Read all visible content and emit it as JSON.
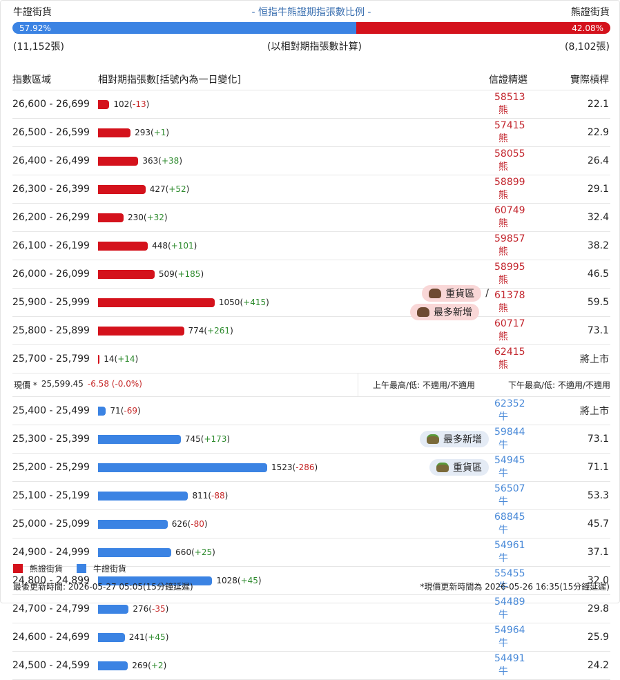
{
  "header": {
    "left": "牛證街貨",
    "title": "- 恒指牛熊證期指張數比例 -",
    "right": "熊證街貨"
  },
  "ratio": {
    "bull": {
      "value": 57.92,
      "label": "57.92%"
    },
    "bear": {
      "value": 42.08,
      "label": "42.08%"
    },
    "bull_count": "(11,152張)",
    "note": "(以相對期指張數計算)",
    "bear_count": "(8,102張)"
  },
  "columns": [
    "指數區域",
    "相對期指張數[括號內為一日變化]",
    "信證精選",
    "實際槓桿"
  ],
  "bear_rows": [
    {
      "range": "26,600 - 26,699",
      "count": 102,
      "change": "-13",
      "code": "58513",
      "kind": "熊",
      "leverage": "22.1"
    },
    {
      "range": "26,500 - 26,599",
      "count": 293,
      "change": "+1",
      "code": "57415",
      "kind": "熊",
      "leverage": "22.9"
    },
    {
      "range": "26,400 - 26,499",
      "count": 363,
      "change": "+38",
      "code": "58055",
      "kind": "熊",
      "leverage": "26.4"
    },
    {
      "range": "26,300 - 26,399",
      "count": 427,
      "change": "+52",
      "code": "58899",
      "kind": "熊",
      "leverage": "29.1"
    },
    {
      "range": "26,200 - 26,299",
      "count": 230,
      "change": "+32",
      "code": "60749",
      "kind": "熊",
      "leverage": "32.4"
    },
    {
      "range": "26,100 - 26,199",
      "count": 448,
      "change": "+101",
      "code": "59857",
      "kind": "熊",
      "leverage": "38.2"
    },
    {
      "range": "26,000 - 26,099",
      "count": 509,
      "change": "+185",
      "code": "58995",
      "kind": "熊",
      "leverage": "46.5"
    },
    {
      "range": "25,900 - 25,999",
      "count": 1050,
      "change": "+415",
      "code": "61378",
      "kind": "熊",
      "leverage": "59.5",
      "tags": [
        "重貨區",
        "最多新增"
      ],
      "tag_separator": "/"
    },
    {
      "range": "25,800 - 25,899",
      "count": 774,
      "change": "+261",
      "code": "60717",
      "kind": "熊",
      "leverage": "73.1"
    },
    {
      "range": "25,700 - 25,799",
      "count": 14,
      "change": "+14",
      "code": "62415",
      "kind": "熊",
      "leverage": "將上市"
    }
  ],
  "current": {
    "label": "現價 *",
    "price": "25,599.45",
    "change": "-6.58 (-0.0%)",
    "am": "上午最高/低: 不適用/不適用",
    "pm": "下午最高/低: 不適用/不適用"
  },
  "bull_rows": [
    {
      "range": "25,400 - 25,499",
      "count": 71,
      "change": "-69",
      "code": "62352",
      "kind": "牛",
      "leverage": "將上市"
    },
    {
      "range": "25,300 - 25,399",
      "count": 745,
      "change": "+173",
      "code": "59844",
      "kind": "牛",
      "leverage": "73.1",
      "tags": [
        "最多新增"
      ]
    },
    {
      "range": "25,200 - 25,299",
      "count": 1523,
      "change": "-286",
      "code": "54945",
      "kind": "牛",
      "leverage": "71.1",
      "tags": [
        "重貨區"
      ]
    },
    {
      "range": "25,100 - 25,199",
      "count": 811,
      "change": "-88",
      "code": "56507",
      "kind": "牛",
      "leverage": "53.3"
    },
    {
      "range": "25,000 - 25,099",
      "count": 626,
      "change": "-80",
      "code": "68845",
      "kind": "牛",
      "leverage": "45.7"
    },
    {
      "range": "24,900 - 24,999",
      "count": 660,
      "change": "+25",
      "code": "54961",
      "kind": "牛",
      "leverage": "37.1"
    },
    {
      "range": "24,800 - 24,899",
      "count": 1028,
      "change": "+45",
      "code": "55455",
      "kind": "牛",
      "leverage": "32.0"
    },
    {
      "range": "24,700 - 24,799",
      "count": 276,
      "change": "-35",
      "code": "54489",
      "kind": "牛",
      "leverage": "29.8"
    },
    {
      "range": "24,600 - 24,699",
      "count": 241,
      "change": "+45",
      "code": "54964",
      "kind": "牛",
      "leverage": "25.9"
    },
    {
      "range": "24,500 - 24,599",
      "count": 269,
      "change": "+2",
      "code": "54491",
      "kind": "牛",
      "leverage": "24.2"
    }
  ],
  "legend": {
    "bear": "熊證街貨",
    "bull": "牛證街貨"
  },
  "footer": {
    "left": "最後更新時間: 2026-05-27 05:05(15分鐘延遲)",
    "right": "*現價更新時間為 2026-05-26 16:35(15分鐘延遲)"
  }
}
